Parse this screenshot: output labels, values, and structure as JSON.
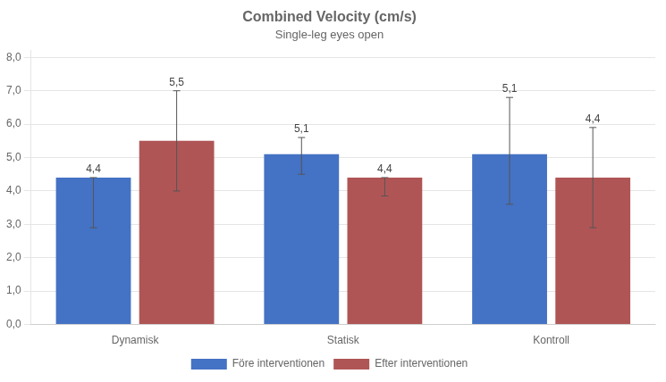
{
  "chart_data": {
    "type": "bar",
    "title": "Combined Velocity (cm/s)",
    "subtitle": "Single-leg eyes open",
    "categories": [
      "Dynamisk",
      "Statisk",
      "Kontroll"
    ],
    "series": [
      {
        "name": "Före interventionen",
        "color": "#4472C4",
        "values": [
          4.4,
          5.1,
          5.1
        ],
        "value_labels": [
          "4,4",
          "5,1",
          "5,1"
        ],
        "errors_up": [
          0.0,
          0.5,
          1.7
        ],
        "errors_down": [
          1.5,
          0.6,
          1.5
        ]
      },
      {
        "name": "Efter interventionen",
        "color": "#B05555",
        "values": [
          5.5,
          4.4,
          4.4
        ],
        "value_labels": [
          "5,5",
          "4,4",
          "4,4"
        ],
        "errors_up": [
          1.5,
          0.0,
          1.5
        ],
        "errors_down": [
          1.5,
          0.55,
          1.5
        ]
      }
    ],
    "ylim": [
      0,
      8.2
    ],
    "yticks": [
      {
        "value": 0.0,
        "label": "0,0"
      },
      {
        "value": 1.0,
        "label": "1,0"
      },
      {
        "value": 2.0,
        "label": "2,0"
      },
      {
        "value": 3.0,
        "label": "3,0"
      },
      {
        "value": 4.0,
        "label": "4,0"
      },
      {
        "value": 5.0,
        "label": "5,0"
      },
      {
        "value": 6.0,
        "label": "6,0"
      },
      {
        "value": 7.0,
        "label": "7,0"
      },
      {
        "value": 8.0,
        "label": "8,0"
      }
    ],
    "grid": true,
    "legend": "bottom",
    "data_labels": true
  }
}
